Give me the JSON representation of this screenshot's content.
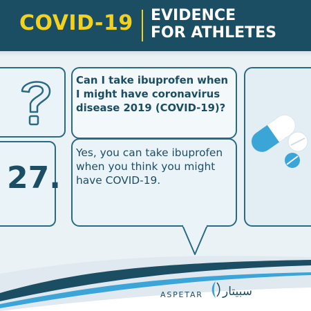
{
  "header": {
    "title_left": "COVID-19",
    "title_right_line1": "EVIDENCE",
    "title_right_line2": "FOR ATHLETES"
  },
  "card": {
    "number": "27.",
    "question": "Can I take ibuprofen when I might have coronavirus disease 2019 (COVID-19)?",
    "answer": "Yes, you can take ibuprofen when you think you might have COVID-19."
  },
  "footer": {
    "brand": "ASPETAR",
    "brand_arabic": "سبيتار"
  },
  "colors": {
    "navy": "#1c4e63",
    "yellow": "#f2d11f",
    "teal": "#2a6a80",
    "pill_blue": "#3aa5d6"
  },
  "icons": [
    "question-mark-icon",
    "pills-illustration",
    "aspetar-logo-icon"
  ]
}
